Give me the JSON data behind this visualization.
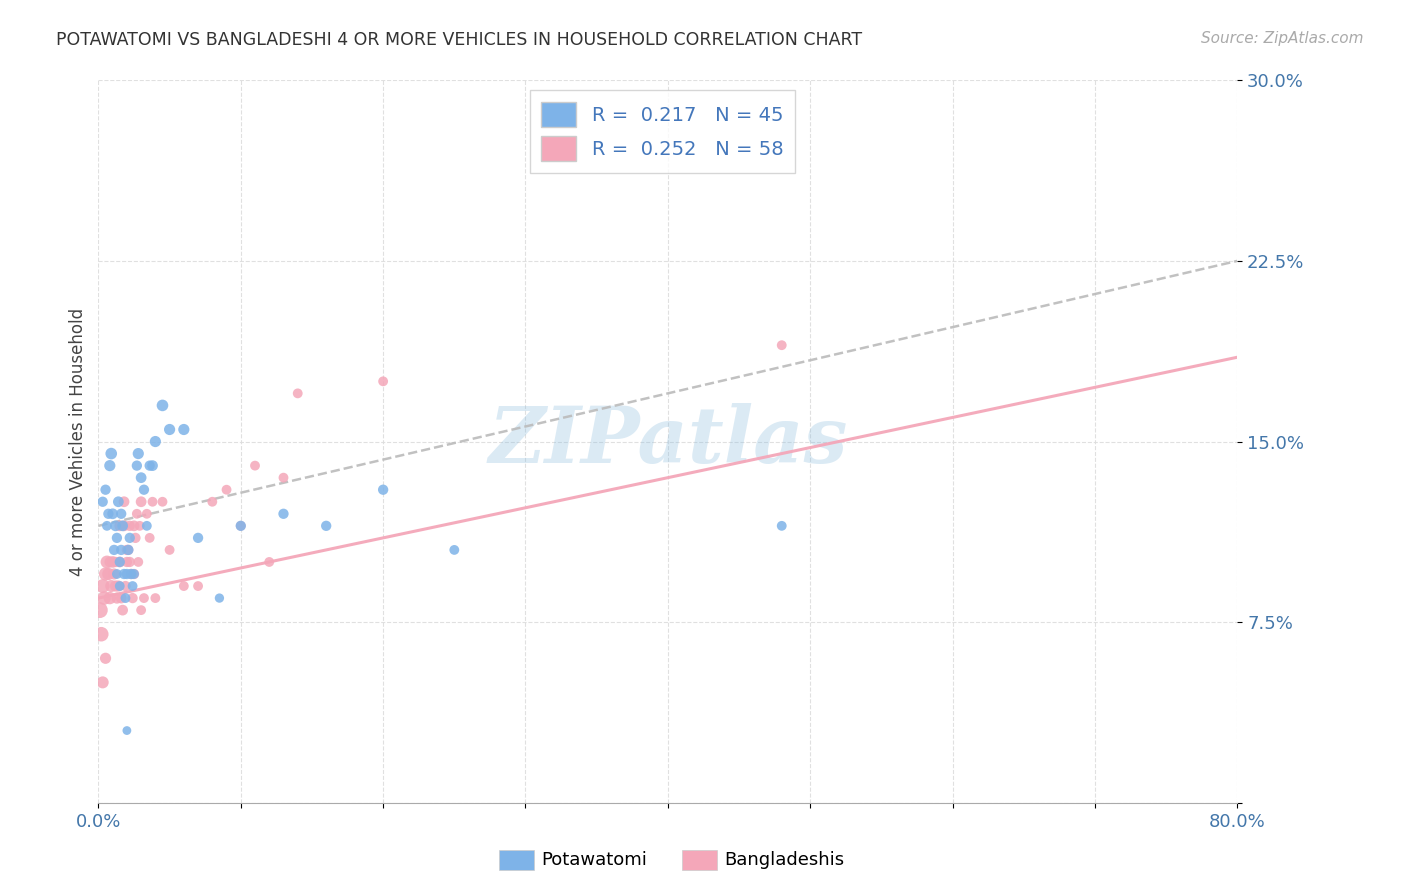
{
  "title": "POTAWATOMI VS BANGLADESHI 4 OR MORE VEHICLES IN HOUSEHOLD CORRELATION CHART",
  "source": "Source: ZipAtlas.com",
  "ylabel": "4 or more Vehicles in Household",
  "xlim": [
    0.0,
    0.8
  ],
  "ylim": [
    0.0,
    0.3
  ],
  "xtick_vals": [
    0.0,
    0.1,
    0.2,
    0.3,
    0.4,
    0.5,
    0.6,
    0.7,
    0.8
  ],
  "xtick_labels": [
    "0.0%",
    "",
    "",
    "",
    "",
    "",
    "",
    "",
    "80.0%"
  ],
  "ytick_vals": [
    0.0,
    0.075,
    0.15,
    0.225,
    0.3
  ],
  "ytick_labels": [
    "",
    "7.5%",
    "15.0%",
    "22.5%",
    "30.0%"
  ],
  "legend1_R": "0.217",
  "legend1_N": "45",
  "legend2_R": "0.252",
  "legend2_N": "58",
  "blue_color": "#7EB3E8",
  "pink_color": "#F4A7B9",
  "watermark": "ZIPatlas",
  "blue_line_x0": 0.0,
  "blue_line_y0": 0.115,
  "blue_line_x1": 0.8,
  "blue_line_y1": 0.225,
  "pink_line_x0": 0.0,
  "pink_line_y0": 0.085,
  "pink_line_x1": 0.8,
  "pink_line_y1": 0.185,
  "potawatomi_x": [
    0.003,
    0.005,
    0.006,
    0.007,
    0.008,
    0.009,
    0.01,
    0.011,
    0.012,
    0.013,
    0.013,
    0.014,
    0.015,
    0.015,
    0.016,
    0.016,
    0.017,
    0.018,
    0.019,
    0.02,
    0.021,
    0.022,
    0.023,
    0.024,
    0.025,
    0.027,
    0.028,
    0.03,
    0.032,
    0.034,
    0.036,
    0.038,
    0.04,
    0.045,
    0.05,
    0.06,
    0.07,
    0.085,
    0.1,
    0.13,
    0.16,
    0.2,
    0.25,
    0.48,
    0.02
  ],
  "potawatomi_y": [
    0.125,
    0.13,
    0.115,
    0.12,
    0.14,
    0.145,
    0.12,
    0.105,
    0.115,
    0.11,
    0.095,
    0.125,
    0.1,
    0.09,
    0.12,
    0.105,
    0.115,
    0.095,
    0.085,
    0.095,
    0.105,
    0.11,
    0.095,
    0.09,
    0.095,
    0.14,
    0.145,
    0.135,
    0.13,
    0.115,
    0.14,
    0.14,
    0.15,
    0.165,
    0.155,
    0.155,
    0.11,
    0.085,
    0.115,
    0.12,
    0.115,
    0.13,
    0.105,
    0.115,
    0.03
  ],
  "potawatomi_sizes": [
    55,
    55,
    50,
    55,
    65,
    70,
    60,
    55,
    60,
    55,
    50,
    60,
    55,
    50,
    55,
    55,
    60,
    55,
    50,
    55,
    55,
    55,
    55,
    50,
    50,
    55,
    65,
    60,
    55,
    50,
    55,
    60,
    65,
    70,
    65,
    65,
    55,
    45,
    55,
    55,
    55,
    55,
    50,
    50,
    40
  ],
  "bangladeshi_x": [
    0.001,
    0.002,
    0.003,
    0.004,
    0.005,
    0.006,
    0.007,
    0.008,
    0.009,
    0.01,
    0.011,
    0.012,
    0.013,
    0.014,
    0.015,
    0.016,
    0.017,
    0.018,
    0.019,
    0.02,
    0.021,
    0.022,
    0.023,
    0.024,
    0.025,
    0.026,
    0.027,
    0.028,
    0.029,
    0.03,
    0.032,
    0.034,
    0.036,
    0.038,
    0.04,
    0.045,
    0.05,
    0.06,
    0.07,
    0.08,
    0.09,
    0.1,
    0.11,
    0.12,
    0.13,
    0.14,
    0.2,
    0.48,
    0.02,
    0.025,
    0.03,
    0.015,
    0.018,
    0.022,
    0.012,
    0.008,
    0.005,
    0.003
  ],
  "bangladeshi_y": [
    0.08,
    0.07,
    0.09,
    0.085,
    0.095,
    0.1,
    0.095,
    0.085,
    0.09,
    0.1,
    0.095,
    0.09,
    0.085,
    0.09,
    0.1,
    0.085,
    0.08,
    0.115,
    0.09,
    0.1,
    0.105,
    0.1,
    0.095,
    0.085,
    0.095,
    0.11,
    0.12,
    0.1,
    0.115,
    0.08,
    0.085,
    0.12,
    0.11,
    0.125,
    0.085,
    0.125,
    0.105,
    0.09,
    0.09,
    0.125,
    0.13,
    0.115,
    0.14,
    0.1,
    0.135,
    0.17,
    0.175,
    0.19,
    0.105,
    0.115,
    0.125,
    0.115,
    0.125,
    0.115,
    0.1,
    0.1,
    0.06,
    0.05
  ],
  "bangladeshi_sizes": [
    130,
    110,
    100,
    95,
    90,
    85,
    80,
    80,
    75,
    70,
    65,
    65,
    65,
    65,
    60,
    60,
    60,
    60,
    55,
    55,
    55,
    55,
    55,
    55,
    55,
    55,
    50,
    50,
    50,
    50,
    50,
    50,
    50,
    50,
    50,
    50,
    50,
    50,
    50,
    50,
    50,
    50,
    50,
    50,
    50,
    50,
    50,
    50,
    55,
    60,
    60,
    60,
    60,
    55,
    55,
    60,
    65,
    75
  ]
}
